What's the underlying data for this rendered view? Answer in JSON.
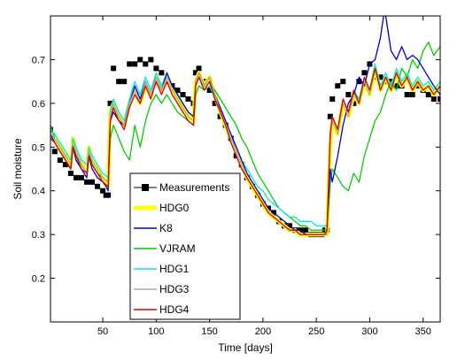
{
  "chart_data": {
    "type": "line",
    "xlabel": "Time [days]",
    "ylabel": "Soil moisture",
    "xlim": [
      1,
      366
    ],
    "ylim": [
      0.1,
      0.8
    ],
    "xticks": [
      50,
      100,
      150,
      200,
      250,
      300,
      350
    ],
    "yticks": [
      0.2,
      0.3,
      0.4,
      0.5,
      0.6,
      0.7
    ],
    "xtick_labels": [
      "50",
      "100",
      "150",
      "200",
      "250",
      "300",
      "350"
    ],
    "ytick_labels": [
      "0.2",
      "0.3",
      "0.4",
      "0.5",
      "0.6",
      "0.7"
    ],
    "grid": false,
    "legend_position": "lower-center",
    "series": [
      {
        "name": "Measurements",
        "color": "#000000",
        "style": "square-marker",
        "x": [
          1,
          5,
          10,
          15,
          20,
          25,
          30,
          35,
          40,
          45,
          50,
          53,
          55,
          57,
          60,
          65,
          70,
          75,
          80,
          85,
          90,
          95,
          100,
          105,
          110,
          115,
          120,
          125,
          130,
          135,
          137,
          140,
          145,
          150,
          155,
          160,
          165,
          170,
          175,
          180,
          185,
          190,
          195,
          200,
          205,
          210,
          215,
          220,
          225,
          230,
          235,
          240,
          245,
          250,
          255,
          258,
          260,
          263,
          265,
          270,
          275,
          280,
          285,
          290,
          295,
          300,
          305,
          310,
          315,
          320,
          325,
          330,
          335,
          340,
          345,
          350,
          355,
          360,
          366
        ],
        "y": [
          0.54,
          0.49,
          0.47,
          0.46,
          0.44,
          0.43,
          0.43,
          0.42,
          0.42,
          0.41,
          0.4,
          0.39,
          0.39,
          0.6,
          0.68,
          0.65,
          0.65,
          0.69,
          0.69,
          0.7,
          0.69,
          0.7,
          0.68,
          0.67,
          0.65,
          0.64,
          0.63,
          0.62,
          0.61,
          0.6,
          0.67,
          0.68,
          0.65,
          0.63,
          0.6,
          0.57,
          0.55,
          0.52,
          0.48,
          0.46,
          0.43,
          0.41,
          0.39,
          0.37,
          0.36,
          0.35,
          0.33,
          0.32,
          0.32,
          0.31,
          0.31,
          0.31,
          0.3,
          0.3,
          0.3,
          0.31,
          0.31,
          0.57,
          0.61,
          0.64,
          0.65,
          0.62,
          0.6,
          0.65,
          0.67,
          0.69,
          0.66,
          0.66,
          0.65,
          0.65,
          0.64,
          0.64,
          0.62,
          0.62,
          0.64,
          0.63,
          0.62,
          0.61,
          0.61
        ]
      },
      {
        "name": "HDG0",
        "color": "#ffff00",
        "style": "line",
        "x": [
          1,
          5,
          10,
          15,
          20,
          22,
          25,
          30,
          35,
          37,
          40,
          45,
          50,
          53,
          55,
          57,
          60,
          65,
          70,
          75,
          80,
          85,
          90,
          95,
          100,
          105,
          110,
          115,
          120,
          125,
          130,
          135,
          137,
          140,
          145,
          150,
          155,
          160,
          165,
          170,
          175,
          180,
          185,
          190,
          195,
          200,
          205,
          210,
          215,
          220,
          225,
          230,
          235,
          240,
          245,
          250,
          255,
          258,
          260,
          263,
          265,
          270,
          275,
          280,
          285,
          290,
          295,
          300,
          305,
          310,
          315,
          320,
          325,
          330,
          335,
          340,
          345,
          350,
          355,
          360,
          366
        ],
        "y": [
          0.53,
          0.52,
          0.5,
          0.48,
          0.46,
          0.52,
          0.49,
          0.46,
          0.45,
          0.5,
          0.47,
          0.45,
          0.43,
          0.42,
          0.41,
          0.58,
          0.6,
          0.57,
          0.55,
          0.6,
          0.63,
          0.6,
          0.64,
          0.62,
          0.66,
          0.63,
          0.66,
          0.63,
          0.61,
          0.59,
          0.57,
          0.56,
          0.65,
          0.67,
          0.64,
          0.66,
          0.62,
          0.58,
          0.55,
          0.52,
          0.49,
          0.46,
          0.43,
          0.41,
          0.39,
          0.37,
          0.35,
          0.34,
          0.33,
          0.32,
          0.31,
          0.31,
          0.3,
          0.3,
          0.3,
          0.3,
          0.3,
          0.3,
          0.3,
          0.5,
          0.56,
          0.53,
          0.6,
          0.57,
          0.62,
          0.6,
          0.65,
          0.62,
          0.68,
          0.63,
          0.66,
          0.63,
          0.67,
          0.64,
          0.66,
          0.63,
          0.65,
          0.63,
          0.64,
          0.62,
          0.64
        ]
      },
      {
        "name": "K8",
        "color": "#0000cc",
        "style": "line",
        "x": [
          1,
          5,
          10,
          15,
          20,
          22,
          25,
          30,
          35,
          37,
          40,
          45,
          50,
          53,
          55,
          57,
          60,
          65,
          70,
          75,
          80,
          85,
          90,
          95,
          100,
          105,
          110,
          115,
          120,
          125,
          130,
          135,
          137,
          140,
          145,
          150,
          155,
          160,
          165,
          170,
          175,
          180,
          185,
          190,
          195,
          200,
          205,
          210,
          215,
          220,
          225,
          230,
          235,
          240,
          245,
          250,
          255,
          258,
          260,
          263,
          265,
          270,
          275,
          280,
          285,
          290,
          295,
          300,
          305,
          310,
          313,
          315,
          320,
          325,
          330,
          335,
          340,
          345,
          350,
          355,
          360,
          366
        ],
        "y": [
          0.53,
          0.51,
          0.49,
          0.47,
          0.45,
          0.5,
          0.47,
          0.45,
          0.43,
          0.48,
          0.45,
          0.43,
          0.42,
          0.41,
          0.4,
          0.56,
          0.58,
          0.56,
          0.55,
          0.6,
          0.64,
          0.61,
          0.65,
          0.62,
          0.66,
          0.63,
          0.67,
          0.64,
          0.62,
          0.6,
          0.58,
          0.57,
          0.65,
          0.67,
          0.64,
          0.66,
          0.62,
          0.59,
          0.56,
          0.53,
          0.5,
          0.47,
          0.44,
          0.42,
          0.4,
          0.38,
          0.36,
          0.35,
          0.34,
          0.33,
          0.32,
          0.31,
          0.31,
          0.3,
          0.3,
          0.3,
          0.3,
          0.3,
          0.31,
          0.45,
          0.42,
          0.48,
          0.55,
          0.6,
          0.62,
          0.66,
          0.64,
          0.69,
          0.7,
          0.75,
          0.8,
          0.8,
          0.72,
          0.7,
          0.73,
          0.7,
          0.71,
          0.7,
          0.68,
          0.66,
          0.64,
          0.62
        ]
      },
      {
        "name": "VJRAM",
        "color": "#00cc00",
        "style": "line",
        "x": [
          1,
          5,
          10,
          15,
          20,
          22,
          25,
          30,
          35,
          37,
          40,
          45,
          50,
          55,
          57,
          60,
          65,
          70,
          75,
          80,
          85,
          90,
          95,
          100,
          105,
          110,
          115,
          120,
          125,
          130,
          135,
          137,
          140,
          145,
          150,
          155,
          160,
          165,
          170,
          175,
          180,
          185,
          190,
          195,
          200,
          205,
          210,
          215,
          220,
          225,
          230,
          235,
          240,
          245,
          250,
          255,
          258,
          260,
          263,
          265,
          270,
          275,
          280,
          285,
          290,
          295,
          300,
          305,
          310,
          315,
          320,
          325,
          330,
          335,
          340,
          345,
          350,
          355,
          360,
          366
        ],
        "y": [
          0.55,
          0.52,
          0.5,
          0.48,
          0.46,
          0.51,
          0.48,
          0.46,
          0.44,
          0.49,
          0.46,
          0.44,
          0.43,
          0.42,
          0.52,
          0.55,
          0.52,
          0.49,
          0.47,
          0.55,
          0.5,
          0.56,
          0.6,
          0.62,
          0.6,
          0.62,
          0.6,
          0.58,
          0.57,
          0.56,
          0.55,
          0.62,
          0.64,
          0.63,
          0.64,
          0.63,
          0.61,
          0.59,
          0.57,
          0.55,
          0.52,
          0.5,
          0.47,
          0.44,
          0.42,
          0.4,
          0.38,
          0.36,
          0.35,
          0.34,
          0.33,
          0.32,
          0.32,
          0.31,
          0.31,
          0.31,
          0.31,
          0.31,
          0.42,
          0.45,
          0.43,
          0.41,
          0.4,
          0.44,
          0.42,
          0.48,
          0.52,
          0.56,
          0.58,
          0.62,
          0.65,
          0.63,
          0.68,
          0.66,
          0.7,
          0.68,
          0.72,
          0.74,
          0.71,
          0.73
        ]
      },
      {
        "name": "HDG1",
        "color": "#00e5e5",
        "style": "line",
        "x": [
          1,
          5,
          10,
          15,
          20,
          22,
          25,
          30,
          35,
          37,
          40,
          45,
          50,
          55,
          57,
          60,
          65,
          70,
          75,
          80,
          85,
          90,
          95,
          100,
          105,
          110,
          115,
          120,
          125,
          130,
          135,
          137,
          140,
          145,
          150,
          155,
          160,
          165,
          170,
          175,
          180,
          185,
          190,
          195,
          200,
          205,
          210,
          215,
          220,
          225,
          230,
          235,
          240,
          245,
          250,
          255,
          258,
          260,
          263,
          265,
          270,
          275,
          280,
          285,
          290,
          295,
          300,
          305,
          310,
          315,
          320,
          325,
          330,
          335,
          340,
          345,
          350,
          355,
          360,
          366
        ],
        "y": [
          0.54,
          0.53,
          0.51,
          0.49,
          0.47,
          0.52,
          0.5,
          0.47,
          0.46,
          0.5,
          0.48,
          0.46,
          0.44,
          0.43,
          0.58,
          0.61,
          0.58,
          0.56,
          0.61,
          0.65,
          0.62,
          0.66,
          0.63,
          0.67,
          0.64,
          0.67,
          0.64,
          0.62,
          0.6,
          0.58,
          0.57,
          0.64,
          0.66,
          0.63,
          0.64,
          0.61,
          0.58,
          0.55,
          0.52,
          0.5,
          0.47,
          0.45,
          0.43,
          0.41,
          0.4,
          0.38,
          0.37,
          0.36,
          0.35,
          0.34,
          0.34,
          0.33,
          0.33,
          0.33,
          0.32,
          0.32,
          0.32,
          0.32,
          0.52,
          0.57,
          0.54,
          0.61,
          0.58,
          0.63,
          0.61,
          0.66,
          0.63,
          0.69,
          0.64,
          0.67,
          0.64,
          0.68,
          0.65,
          0.67,
          0.64,
          0.66,
          0.64,
          0.65,
          0.63,
          0.65
        ]
      },
      {
        "name": "HDG3",
        "color": "#aaaaaa",
        "style": "line",
        "x": [
          1,
          5,
          10,
          15,
          20,
          22,
          25,
          30,
          35,
          37,
          40,
          45,
          50,
          55,
          57,
          60,
          65,
          70,
          75,
          80,
          85,
          90,
          95,
          100,
          105,
          110,
          115,
          120,
          125,
          130,
          135,
          137,
          140,
          145,
          150,
          155,
          160,
          165,
          170,
          175,
          180,
          185,
          190,
          195,
          200,
          205,
          210,
          215,
          220,
          225,
          230,
          235,
          240,
          245,
          250,
          255,
          258,
          260,
          263,
          265,
          270,
          275,
          280,
          285,
          290,
          295,
          300,
          305,
          310,
          315,
          320,
          325,
          330,
          335,
          340,
          345,
          350,
          355,
          360,
          366
        ],
        "y": [
          0.53,
          0.52,
          0.5,
          0.48,
          0.46,
          0.51,
          0.49,
          0.46,
          0.44,
          0.49,
          0.47,
          0.45,
          0.43,
          0.42,
          0.57,
          0.6,
          0.57,
          0.55,
          0.6,
          0.63,
          0.6,
          0.65,
          0.62,
          0.66,
          0.63,
          0.66,
          0.63,
          0.61,
          0.59,
          0.57,
          0.56,
          0.65,
          0.67,
          0.64,
          0.66,
          0.62,
          0.58,
          0.55,
          0.52,
          0.49,
          0.46,
          0.43,
          0.41,
          0.39,
          0.37,
          0.35,
          0.34,
          0.33,
          0.32,
          0.31,
          0.31,
          0.3,
          0.3,
          0.3,
          0.3,
          0.3,
          0.3,
          0.3,
          0.51,
          0.56,
          0.53,
          0.6,
          0.57,
          0.62,
          0.6,
          0.65,
          0.62,
          0.68,
          0.63,
          0.66,
          0.63,
          0.67,
          0.64,
          0.66,
          0.63,
          0.65,
          0.63,
          0.64,
          0.62,
          0.64
        ]
      },
      {
        "name": "HDG4",
        "color": "#dd0000",
        "style": "line",
        "x": [
          1,
          5,
          10,
          15,
          20,
          22,
          25,
          30,
          35,
          37,
          40,
          45,
          50,
          55,
          57,
          60,
          65,
          70,
          75,
          80,
          85,
          90,
          95,
          100,
          105,
          110,
          115,
          120,
          125,
          130,
          135,
          137,
          140,
          145,
          150,
          155,
          160,
          165,
          170,
          175,
          180,
          185,
          190,
          195,
          200,
          205,
          210,
          215,
          220,
          225,
          230,
          235,
          240,
          245,
          250,
          255,
          258,
          260,
          263,
          265,
          270,
          275,
          280,
          285,
          290,
          295,
          300,
          305,
          310,
          315,
          320,
          325,
          330,
          335,
          340,
          345,
          350,
          355,
          360,
          366
        ],
        "y": [
          0.52,
          0.51,
          0.49,
          0.47,
          0.45,
          0.5,
          0.48,
          0.45,
          0.44,
          0.48,
          0.46,
          0.44,
          0.42,
          0.41,
          0.56,
          0.59,
          0.56,
          0.54,
          0.59,
          0.62,
          0.6,
          0.64,
          0.61,
          0.65,
          0.62,
          0.65,
          0.62,
          0.6,
          0.58,
          0.56,
          0.55,
          0.64,
          0.66,
          0.63,
          0.65,
          0.61,
          0.58,
          0.55,
          0.51,
          0.48,
          0.45,
          0.43,
          0.41,
          0.39,
          0.37,
          0.35,
          0.34,
          0.33,
          0.32,
          0.31,
          0.31,
          0.3,
          0.3,
          0.3,
          0.3,
          0.3,
          0.3,
          0.31,
          0.53,
          0.57,
          0.54,
          0.61,
          0.58,
          0.63,
          0.6,
          0.66,
          0.63,
          0.68,
          0.63,
          0.66,
          0.63,
          0.67,
          0.64,
          0.66,
          0.63,
          0.65,
          0.63,
          0.64,
          0.62,
          0.64
        ]
      }
    ]
  }
}
